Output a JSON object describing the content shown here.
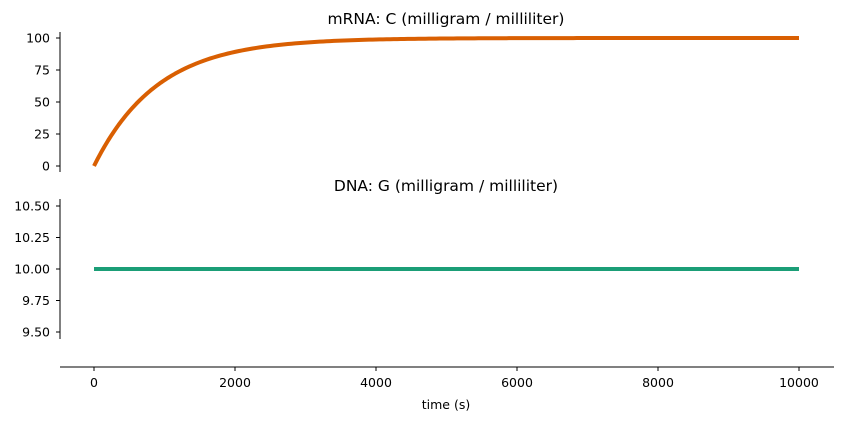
{
  "chart_data": [
    {
      "type": "line",
      "title": "mRNA: C (milligram / milliliter)",
      "xlabel": "",
      "ylabel": "",
      "xlim": [
        0,
        10000
      ],
      "ylim": [
        0,
        100
      ],
      "yticks": [
        0,
        25,
        50,
        75,
        100
      ],
      "yticklabels": [
        "0",
        "25",
        "50",
        "75",
        "100"
      ],
      "grid": false,
      "series": [
        {
          "color": "#d95f02",
          "function": "100*(1-exp(-t/900))",
          "x": [
            0,
            250,
            500,
            750,
            1000,
            1250,
            1500,
            1750,
            2000,
            2500,
            3000,
            3500,
            4000,
            5000,
            6000,
            7000,
            8000,
            9000,
            10000
          ],
          "y": [
            0,
            24.2,
            42.6,
            56.5,
            67.1,
            75.1,
            81.1,
            85.7,
            89.2,
            93.8,
            96.4,
            97.9,
            98.8,
            99.6,
            99.9,
            100,
            100,
            100,
            100
          ]
        }
      ]
    },
    {
      "type": "line",
      "title": "DNA: G (milligram / milliliter)",
      "xlabel": "time (s)",
      "ylabel": "",
      "xlim": [
        0,
        10000
      ],
      "ylim": [
        9.45,
        10.55
      ],
      "xticks": [
        0,
        2000,
        4000,
        6000,
        8000,
        10000
      ],
      "xticklabels": [
        "0",
        "2000",
        "4000",
        "6000",
        "8000",
        "10000"
      ],
      "yticks": [
        9.5,
        9.75,
        10.0,
        10.25,
        10.5
      ],
      "yticklabels": [
        "9.50",
        "9.75",
        "10.00",
        "10.25",
        "10.50"
      ],
      "grid": false,
      "series": [
        {
          "color": "#1b9e77",
          "x": [
            0,
            10000
          ],
          "y": [
            10,
            10
          ]
        }
      ]
    }
  ]
}
